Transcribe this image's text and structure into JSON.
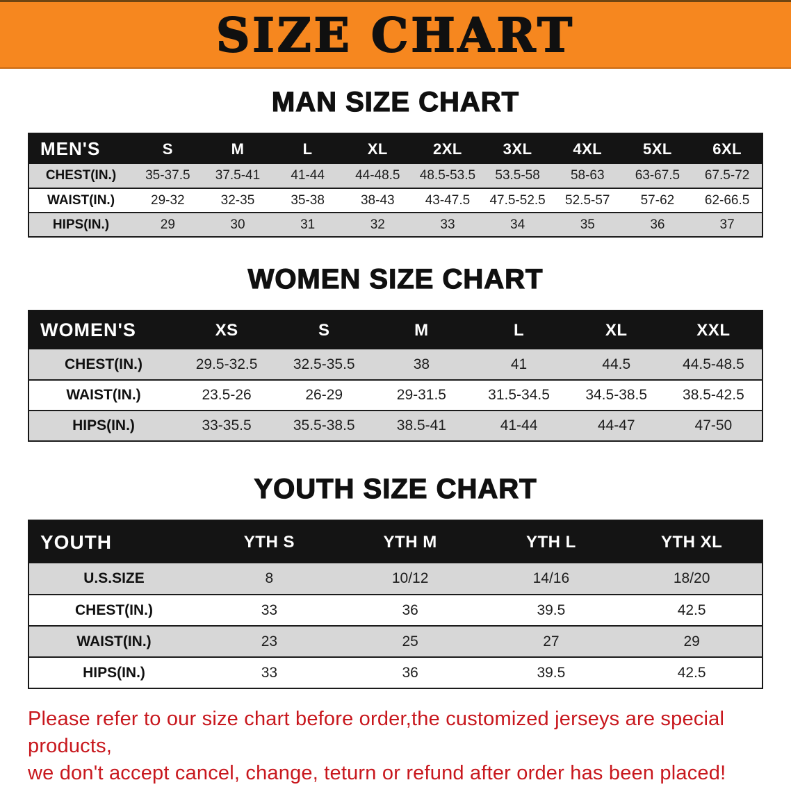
{
  "banner": {
    "title": "SIZE CHART"
  },
  "colors": {
    "banner_bg": "#f6871f",
    "table_header_bg": "#141414",
    "row_stripe": "#d7d7d7",
    "footer_text": "#c8171d"
  },
  "men": {
    "heading": "MAN SIZE CHART",
    "header": [
      "MEN'S",
      "S",
      "M",
      "L",
      "XL",
      "2XL",
      "3XL",
      "4XL",
      "5XL",
      "6XL"
    ],
    "rows": [
      [
        "CHEST(IN.)",
        "35-37.5",
        "37.5-41",
        "41-44",
        "44-48.5",
        "48.5-53.5",
        "53.5-58",
        "58-63",
        "63-67.5",
        "67.5-72"
      ],
      [
        "WAIST(IN.)",
        "29-32",
        "32-35",
        "35-38",
        "38-43",
        "43-47.5",
        "47.5-52.5",
        "52.5-57",
        "57-62",
        "62-66.5"
      ],
      [
        "HIPS(IN.)",
        "29",
        "30",
        "31",
        "32",
        "33",
        "34",
        "35",
        "36",
        "37"
      ]
    ]
  },
  "women": {
    "heading": "WOMEN SIZE CHART",
    "header": [
      "WOMEN'S",
      "XS",
      "S",
      "M",
      "L",
      "XL",
      "XXL"
    ],
    "rows": [
      [
        "CHEST(IN.)",
        "29.5-32.5",
        "32.5-35.5",
        "38",
        "41",
        "44.5",
        "44.5-48.5"
      ],
      [
        "WAIST(IN.)",
        "23.5-26",
        "26-29",
        "29-31.5",
        "31.5-34.5",
        "34.5-38.5",
        "38.5-42.5"
      ],
      [
        "HIPS(IN.)",
        "33-35.5",
        "35.5-38.5",
        "38.5-41",
        "41-44",
        "44-47",
        "47-50"
      ]
    ]
  },
  "youth": {
    "heading": "YOUTH SIZE CHART",
    "header": [
      "YOUTH",
      "YTH S",
      "YTH M",
      "YTH L",
      "YTH XL"
    ],
    "rows": [
      [
        "U.S.SIZE",
        "8",
        "10/12",
        "14/16",
        "18/20"
      ],
      [
        "CHEST(IN.)",
        "33",
        "36",
        "39.5",
        "42.5"
      ],
      [
        "WAIST(IN.)",
        "23",
        "25",
        "27",
        "29"
      ],
      [
        "HIPS(IN.)",
        "33",
        "36",
        "39.5",
        "42.5"
      ]
    ]
  },
  "footer": {
    "line1": "Please refer to our size chart before order,the customized jerseys are special products,",
    "line2": "we don't accept cancel, change, teturn or refund after order has been placed!"
  }
}
